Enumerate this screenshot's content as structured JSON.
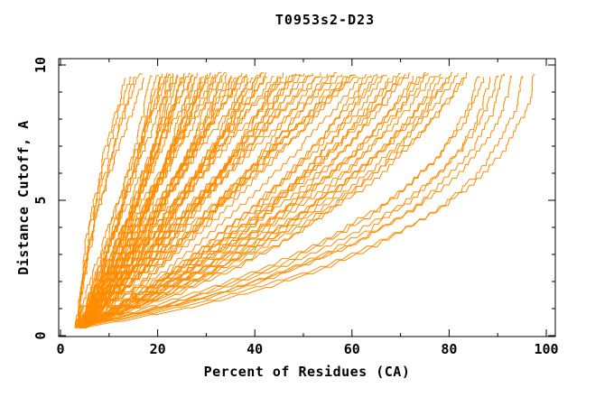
{
  "chart_data": {
    "type": "line",
    "title": "T0953s2-D23",
    "xlabel": "Percent of Residues (CA)",
    "ylabel": "Distance Cutoff, A",
    "xlim": [
      0,
      102.3
    ],
    "ylim": [
      -0.05,
      10.27
    ],
    "x_ticks": {
      "major": [
        0,
        20,
        40,
        60,
        80,
        100
      ],
      "minor": [
        10,
        30,
        50,
        70,
        90
      ]
    },
    "y_ticks": {
      "major": [
        0,
        5,
        10
      ],
      "minor": [
        1,
        2,
        3,
        4,
        6,
        7,
        8,
        9
      ]
    },
    "grid": false,
    "legend": "none",
    "background": "#ffffff",
    "axis_color": "#000000",
    "line_color": "#ff8c00",
    "description": "Bundle of per-model GDT curves: percent of CA residues (x) under distance cutoff (y). Each curve runs from about 3-6% at cutoff 0.3 A up to its final percent at cutoff ~9.6 A.",
    "n_curves": 101,
    "curve_y_start": 0.3,
    "curve_y_end": 9.6,
    "curves_format": "[x_at_y0.3, y_mid, x_at_y_mid, x_at_y9.6]",
    "curves": [
      [
        3.2,
        4.8,
        6.8,
        13.5
      ],
      [
        3.4,
        5.0,
        7.4,
        14.5
      ],
      [
        3.2,
        4.9,
        7.8,
        15.5
      ],
      [
        3.6,
        5.1,
        8.4,
        16.5
      ],
      [
        3.4,
        4.7,
        8.0,
        17.5
      ],
      [
        3.4,
        4.4,
        11.2,
        19
      ],
      [
        4.2,
        4.8,
        13.1,
        20
      ],
      [
        5.0,
        4.2,
        11.8,
        20.5
      ],
      [
        3.8,
        5.0,
        12.9,
        21
      ],
      [
        4.6,
        4.6,
        12.6,
        21.5
      ],
      [
        5.4,
        4.4,
        15.2,
        22
      ],
      [
        3.6,
        4.8,
        11.6,
        22.5
      ],
      [
        4.4,
        4.2,
        14.5,
        23
      ],
      [
        5.2,
        5.0,
        13.6,
        23.5
      ],
      [
        4.0,
        4.6,
        14.3,
        24
      ],
      [
        3.4,
        4.4,
        14.0,
        24.5
      ],
      [
        4.2,
        4.8,
        15.6,
        25
      ],
      [
        5.0,
        4.2,
        14.3,
        25.5
      ],
      [
        3.8,
        5.0,
        15.4,
        26
      ],
      [
        4.6,
        4.6,
        15.1,
        26.5
      ],
      [
        5.4,
        4.4,
        17.7,
        27
      ],
      [
        3.6,
        4.8,
        14.1,
        27.5
      ],
      [
        4.4,
        4.2,
        17.0,
        28
      ],
      [
        5.2,
        5.0,
        16.1,
        28.5
      ],
      [
        4.0,
        4.6,
        16.8,
        29
      ],
      [
        3.4,
        4.4,
        16.5,
        29.5
      ],
      [
        4.2,
        4.8,
        18.1,
        30
      ],
      [
        5.0,
        4.2,
        16.8,
        30.5
      ],
      [
        3.8,
        5.0,
        17.9,
        31
      ],
      [
        4.6,
        4.6,
        17.6,
        31.5
      ],
      [
        5.4,
        4.4,
        20.2,
        32
      ],
      [
        3.6,
        4.8,
        16.8,
        33
      ],
      [
        4.4,
        4.2,
        19.8,
        33.5
      ],
      [
        5.2,
        5.0,
        18.8,
        34
      ],
      [
        4.0,
        4.6,
        19.6,
        34.5
      ],
      [
        3.4,
        4.4,
        19.2,
        35
      ],
      [
        4.2,
        4.8,
        20.9,
        35.5
      ],
      [
        5.0,
        4.2,
        19.5,
        36
      ],
      [
        3.8,
        5.0,
        20.9,
        37
      ],
      [
        4.6,
        4.6,
        20.6,
        37.5
      ],
      [
        5.4,
        4.4,
        23.2,
        38
      ],
      [
        3.6,
        4.8,
        19.6,
        38.5
      ],
      [
        4.4,
        4.2,
        22.5,
        39
      ],
      [
        5.2,
        5.0,
        21.8,
        40
      ],
      [
        4.0,
        4.6,
        22.6,
        40.5
      ],
      [
        3.4,
        4.4,
        22.2,
        41
      ],
      [
        4.2,
        4.8,
        24.1,
        42
      ],
      [
        5.0,
        4.2,
        22.8,
        42.5
      ],
      [
        3.8,
        5.0,
        23.9,
        43
      ],
      [
        4.6,
        4.6,
        23.8,
        44
      ],
      [
        5.4,
        4.4,
        26.7,
        45
      ],
      [
        3.6,
        4.8,
        23.1,
        45.5
      ],
      [
        4.4,
        4.2,
        26.0,
        46
      ],
      [
        5.2,
        5.0,
        25.3,
        47
      ],
      [
        4.0,
        4.6,
        26.3,
        48
      ],
      [
        3.4,
        4.4,
        26.0,
        48.5
      ],
      [
        4.2,
        4.8,
        27.6,
        49
      ],
      [
        5.0,
        4.2,
        26.5,
        50
      ],
      [
        3.8,
        5.0,
        27.9,
        51
      ],
      [
        4.6,
        4.6,
        27.8,
        52
      ],
      [
        5.4,
        4.4,
        30.7,
        53
      ],
      [
        3.6,
        4.8,
        27.3,
        54
      ],
      [
        4.4,
        4.2,
        30.5,
        55
      ],
      [
        5.2,
        5.0,
        29.8,
        56
      ],
      [
        4.0,
        4.6,
        30.8,
        57
      ],
      [
        3.4,
        4.4,
        30.7,
        58
      ],
      [
        4.2,
        4.8,
        32.6,
        59
      ],
      [
        5.0,
        4.2,
        31.5,
        60
      ],
      [
        3.8,
        5.0,
        32.7,
        60.5
      ],
      [
        4.6,
        4.6,
        32.3,
        61
      ],
      [
        5.4,
        4.4,
        35.2,
        62
      ],
      [
        4.0,
        4.3,
        38.2,
        63
      ],
      [
        4.8,
        4.6,
        39.1,
        64
      ],
      [
        3.6,
        4.0,
        39.2,
        65
      ],
      [
        5.2,
        4.8,
        40.5,
        66
      ],
      [
        4.4,
        4.5,
        40.7,
        67
      ],
      [
        4.0,
        4.3,
        41.1,
        68
      ],
      [
        4.8,
        4.6,
        42.0,
        69
      ],
      [
        3.6,
        4.0,
        42.1,
        70
      ],
      [
        5.2,
        4.8,
        43.4,
        71
      ],
      [
        4.4,
        4.5,
        43.6,
        72
      ],
      [
        4.0,
        4.3,
        45.4,
        73
      ],
      [
        4.8,
        4.6,
        46.3,
        74
      ],
      [
        3.6,
        4.0,
        46.4,
        75
      ],
      [
        5.2,
        4.8,
        47.7,
        76
      ],
      [
        4.4,
        4.5,
        48.0,
        77
      ],
      [
        4.0,
        4.3,
        49.9,
        78
      ],
      [
        4.8,
        4.6,
        50.8,
        79
      ],
      [
        3.6,
        4.0,
        51.0,
        80
      ],
      [
        5.2,
        4.8,
        52.2,
        81
      ],
      [
        4.4,
        4.5,
        52.5,
        82
      ],
      [
        4.0,
        4.3,
        53.8,
        83
      ],
      [
        4.8,
        4.6,
        54.7,
        84
      ],
      [
        4.0,
        4.1,
        61.4,
        86
      ],
      [
        4.6,
        4.3,
        62.3,
        87
      ],
      [
        3.8,
        3.9,
        63.9,
        88.5
      ],
      [
        4.2,
        4.2,
        65.1,
        90
      ],
      [
        4.8,
        4.0,
        66.9,
        91
      ],
      [
        3.6,
        4.1,
        68.0,
        93
      ],
      [
        4.4,
        3.8,
        70.5,
        95
      ],
      [
        4.0,
        4.0,
        72.3,
        97.5
      ]
    ]
  }
}
